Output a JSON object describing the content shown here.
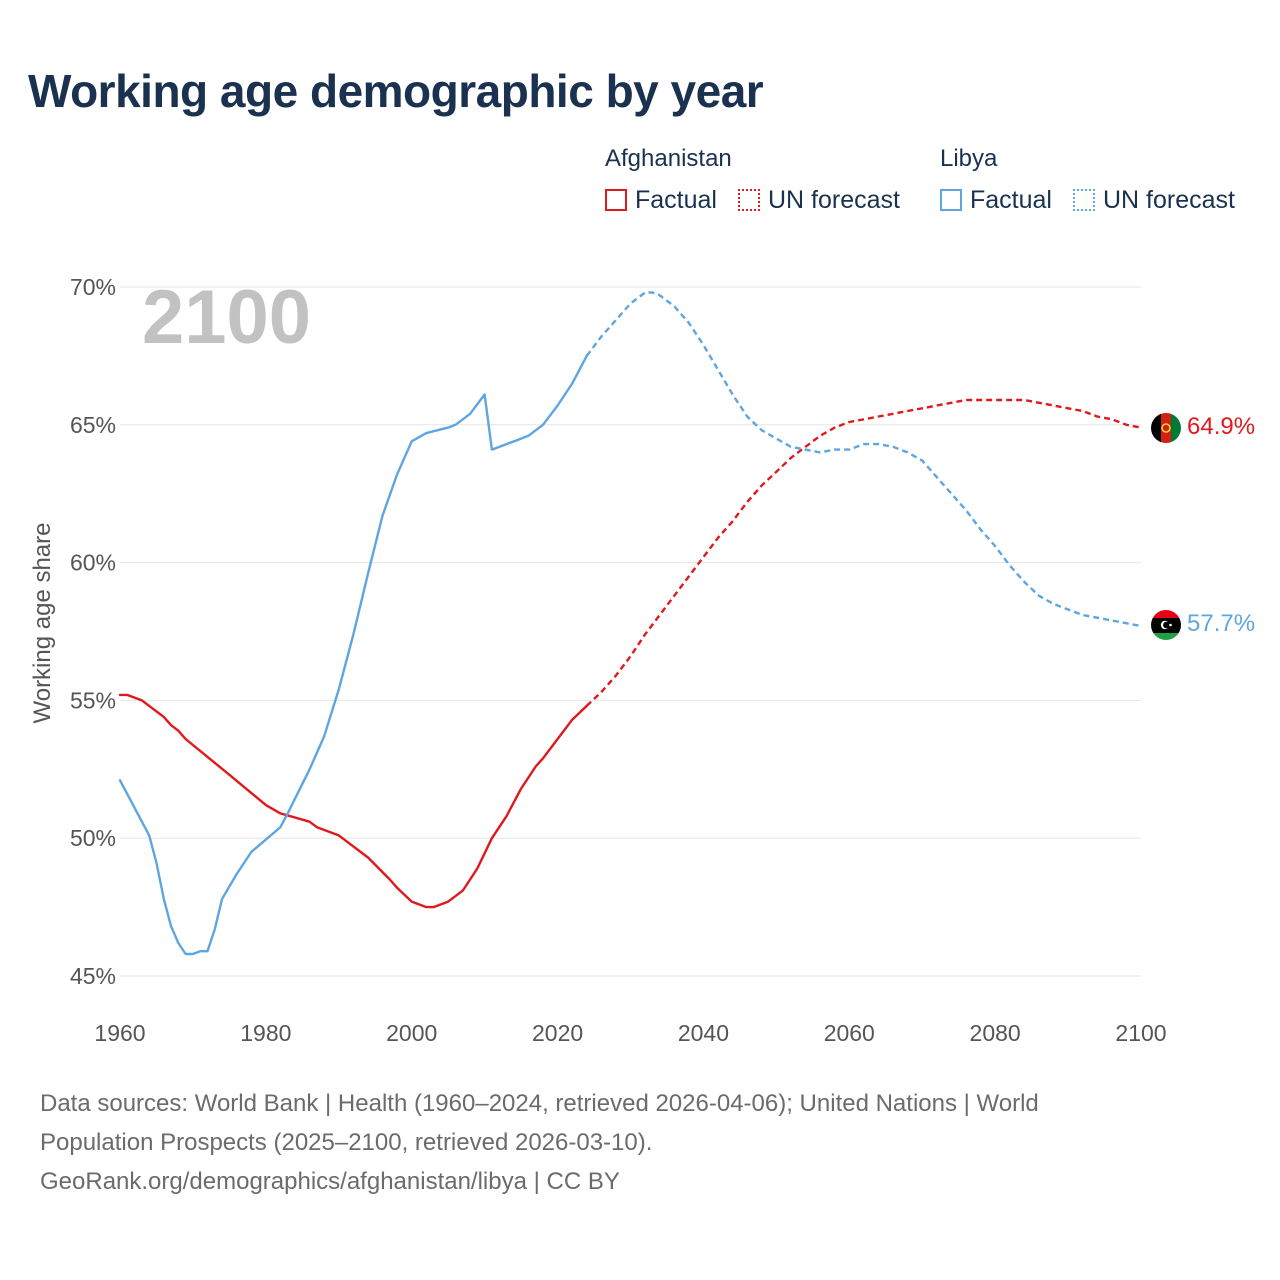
{
  "title": "Working age demographic by year",
  "legend": {
    "groups": [
      {
        "name": "Afghanistan",
        "factual_label": "Factual",
        "forecast_label": "UN forecast",
        "color": "#e0191c"
      },
      {
        "name": "Libya",
        "factual_label": "Factual",
        "forecast_label": "UN forecast",
        "color": "#5fa5e0"
      }
    ]
  },
  "year_watermark": "2100",
  "end_labels": {
    "afghanistan": "64.9%",
    "libya": "57.7%"
  },
  "flags": {
    "afghanistan": "afghanistan-flag-icon",
    "libya": "libya-flag-icon"
  },
  "footer": {
    "line1": "Data sources: World Bank | Health (1960–2024, retrieved 2026-04-06); United Nations | World",
    "line2": "Population Prospects (2025–2100, retrieved 2026-03-10).",
    "line3": "GeoRank.org/demographics/afghanistan/libya | CC BY"
  },
  "chart_data": {
    "type": "line",
    "title": "Working age demographic by year",
    "xlabel": "",
    "ylabel": "Working age share",
    "xlim": [
      1960,
      2100
    ],
    "ylim": [
      45,
      70
    ],
    "x_ticks": [
      1960,
      1980,
      2000,
      2020,
      2040,
      2060,
      2080,
      2100
    ],
    "y_ticks": [
      45,
      50,
      55,
      60,
      65,
      70
    ],
    "x_tick_labels": [
      "1960",
      "1980",
      "2000",
      "2020",
      "2040",
      "2060",
      "2080",
      "2100"
    ],
    "y_tick_labels": [
      "45%",
      "50%",
      "55%",
      "60%",
      "65%",
      "70%"
    ],
    "grid": true,
    "forecast_start": 2024,
    "series": [
      {
        "name": "Afghanistan",
        "color": "#e0191c",
        "x": [
          1960,
          1961,
          1963,
          1966,
          1967,
          1968,
          1969,
          1975,
          1980,
          1982,
          1986,
          1987,
          1990,
          1994,
          1997,
          1998,
          2000,
          2002,
          2003,
          2005,
          2007,
          2009,
          2011,
          2013,
          2015,
          2017,
          2018,
          2020,
          2022,
          2024,
          2026,
          2028,
          2030,
          2032,
          2034,
          2036,
          2038,
          2040,
          2042,
          2044,
          2046,
          2048,
          2050,
          2052,
          2054,
          2056,
          2058,
          2060,
          2062,
          2064,
          2066,
          2068,
          2070,
          2072,
          2074,
          2076,
          2078,
          2080,
          2082,
          2084,
          2086,
          2088,
          2090,
          2092,
          2094,
          2096,
          2098,
          2100
        ],
        "values": [
          55.2,
          55.2,
          55.0,
          54.4,
          54.1,
          53.9,
          53.6,
          52.3,
          51.2,
          50.9,
          50.6,
          50.4,
          50.1,
          49.3,
          48.5,
          48.2,
          47.7,
          47.5,
          47.5,
          47.7,
          48.1,
          48.9,
          50.0,
          50.8,
          51.8,
          52.6,
          52.9,
          53.6,
          54.3,
          54.8,
          55.3,
          55.9,
          56.6,
          57.4,
          58.1,
          58.8,
          59.5,
          60.2,
          60.9,
          61.5,
          62.2,
          62.8,
          63.3,
          63.8,
          64.2,
          64.6,
          64.9,
          65.1,
          65.2,
          65.3,
          65.4,
          65.5,
          65.6,
          65.7,
          65.8,
          65.9,
          65.9,
          65.9,
          65.9,
          65.9,
          65.8,
          65.7,
          65.6,
          65.5,
          65.3,
          65.2,
          65.0,
          64.9
        ]
      },
      {
        "name": "Libya",
        "color": "#5fa5e0",
        "x": [
          1960,
          1964,
          1965,
          1966,
          1967,
          1968,
          1969,
          1970,
          1971,
          1972,
          1973,
          1974,
          1976,
          1978,
          1982,
          1983,
          1986,
          1988,
          1990,
          1992,
          1994,
          1996,
          1998,
          2000,
          2002,
          2005,
          2006,
          2008,
          2010,
          2011,
          2013,
          2015,
          2016,
          2018,
          2020,
          2022,
          2024,
          2026,
          2028,
          2030,
          2032,
          2033,
          2034,
          2036,
          2038,
          2040,
          2042,
          2044,
          2046,
          2048,
          2050,
          2052,
          2054,
          2056,
          2058,
          2060,
          2062,
          2064,
          2066,
          2068,
          2070,
          2072,
          2074,
          2076,
          2078,
          2080,
          2082,
          2084,
          2086,
          2088,
          2090,
          2092,
          2094,
          2096,
          2098,
          2100
        ],
        "values": [
          52.1,
          50.1,
          49.1,
          47.8,
          46.8,
          46.2,
          45.8,
          45.8,
          45.9,
          45.9,
          46.7,
          47.8,
          48.7,
          49.5,
          50.4,
          50.9,
          52.5,
          53.7,
          55.4,
          57.4,
          59.6,
          61.7,
          63.2,
          64.4,
          64.7,
          64.9,
          65.0,
          65.4,
          66.1,
          64.1,
          64.3,
          64.5,
          64.6,
          65.0,
          65.7,
          66.5,
          67.5,
          68.2,
          68.8,
          69.4,
          69.8,
          69.8,
          69.7,
          69.3,
          68.7,
          67.9,
          67.0,
          66.1,
          65.3,
          64.8,
          64.5,
          64.2,
          64.1,
          64.0,
          64.1,
          64.1,
          64.3,
          64.3,
          64.2,
          64.0,
          63.7,
          63.1,
          62.5,
          61.9,
          61.2,
          60.6,
          59.9,
          59.3,
          58.8,
          58.5,
          58.3,
          58.1,
          58.0,
          57.9,
          57.8,
          57.7
        ]
      }
    ]
  }
}
